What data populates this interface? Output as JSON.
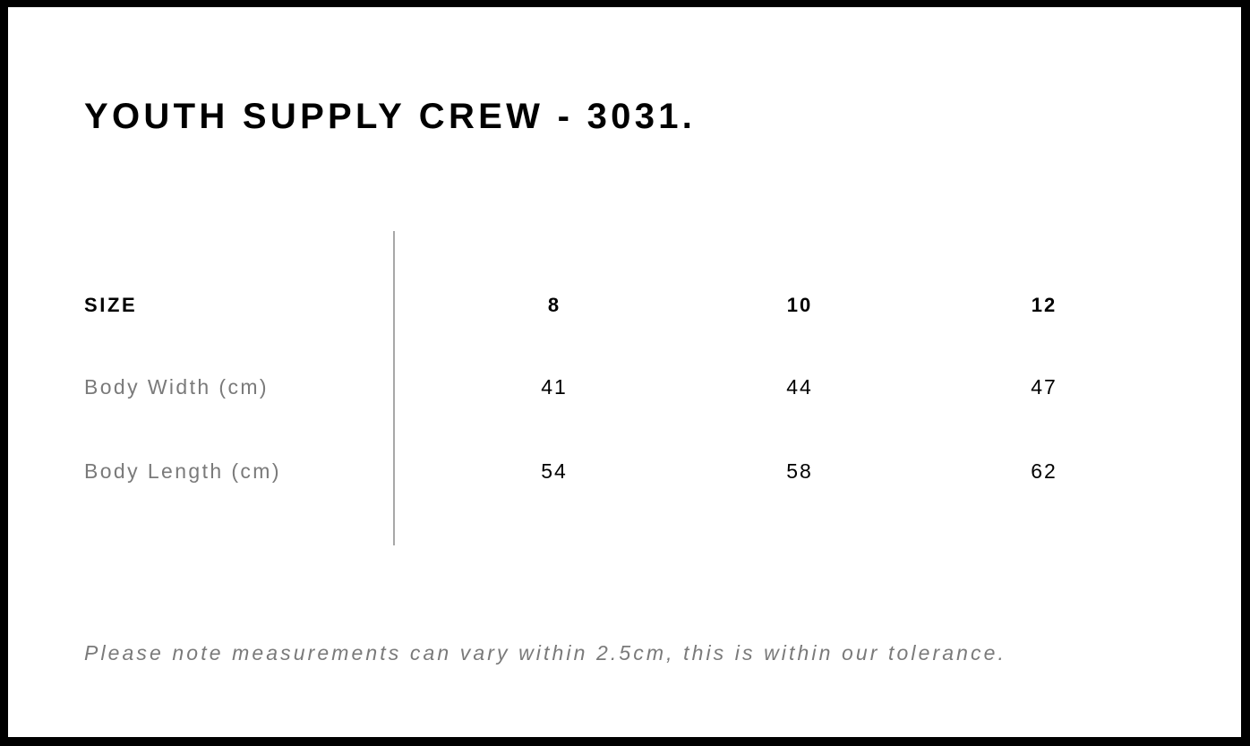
{
  "title": "YOUTH SUPPLY CREW - 3031.",
  "table": {
    "header_label": "SIZE",
    "sizes": [
      "8",
      "10",
      "12"
    ],
    "rows": [
      {
        "label": "Body Width (cm)",
        "values": [
          "41",
          "44",
          "47"
        ]
      },
      {
        "label": "Body Length (cm)",
        "values": [
          "54",
          "58",
          "62"
        ]
      }
    ]
  },
  "note": "Please note measurements can vary within 2.5cm, this is within our tolerance."
}
